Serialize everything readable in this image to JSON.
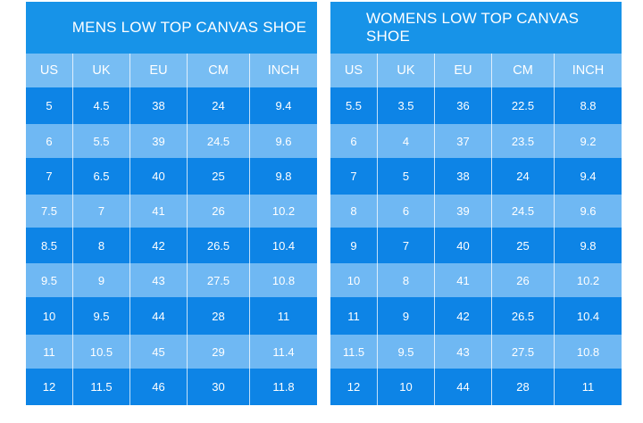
{
  "colors": {
    "dark": "#0d84e6",
    "light": "#6fb8f3",
    "title": "#1793e8",
    "text": "#ffffff"
  },
  "men": {
    "title": "MENS LOW TOP CANVAS SHOE",
    "headers": [
      "US",
      "UK",
      "EU",
      "CM",
      "INCH"
    ],
    "rows": [
      [
        "5",
        "4.5",
        "38",
        "24",
        "9.4"
      ],
      [
        "6",
        "5.5",
        "39",
        "24.5",
        "9.6"
      ],
      [
        "7",
        "6.5",
        "40",
        "25",
        "9.8"
      ],
      [
        "7.5",
        "7",
        "41",
        "26",
        "10.2"
      ],
      [
        "8.5",
        "8",
        "42",
        "26.5",
        "10.4"
      ],
      [
        "9.5",
        "9",
        "43",
        "27.5",
        "10.8"
      ],
      [
        "10",
        "9.5",
        "44",
        "28",
        "11"
      ],
      [
        "11",
        "10.5",
        "45",
        "29",
        "11.4"
      ],
      [
        "12",
        "11.5",
        "46",
        "30",
        "11.8"
      ]
    ]
  },
  "women": {
    "title": "WOMENS LOW TOP CANVAS SHOE",
    "headers": [
      "US",
      "UK",
      "EU",
      "CM",
      "INCH"
    ],
    "rows": [
      [
        "5.5",
        "3.5",
        "36",
        "22.5",
        "8.8"
      ],
      [
        "6",
        "4",
        "37",
        "23.5",
        "9.2"
      ],
      [
        "7",
        "5",
        "38",
        "24",
        "9.4"
      ],
      [
        "8",
        "6",
        "39",
        "24.5",
        "9.6"
      ],
      [
        "9",
        "7",
        "40",
        "25",
        "9.8"
      ],
      [
        "10",
        "8",
        "41",
        "26",
        "10.2"
      ],
      [
        "11",
        "9",
        "42",
        "26.5",
        "10.4"
      ],
      [
        "11.5",
        "9.5",
        "43",
        "27.5",
        "10.8"
      ],
      [
        "12",
        "10",
        "44",
        "28",
        "11"
      ]
    ]
  }
}
